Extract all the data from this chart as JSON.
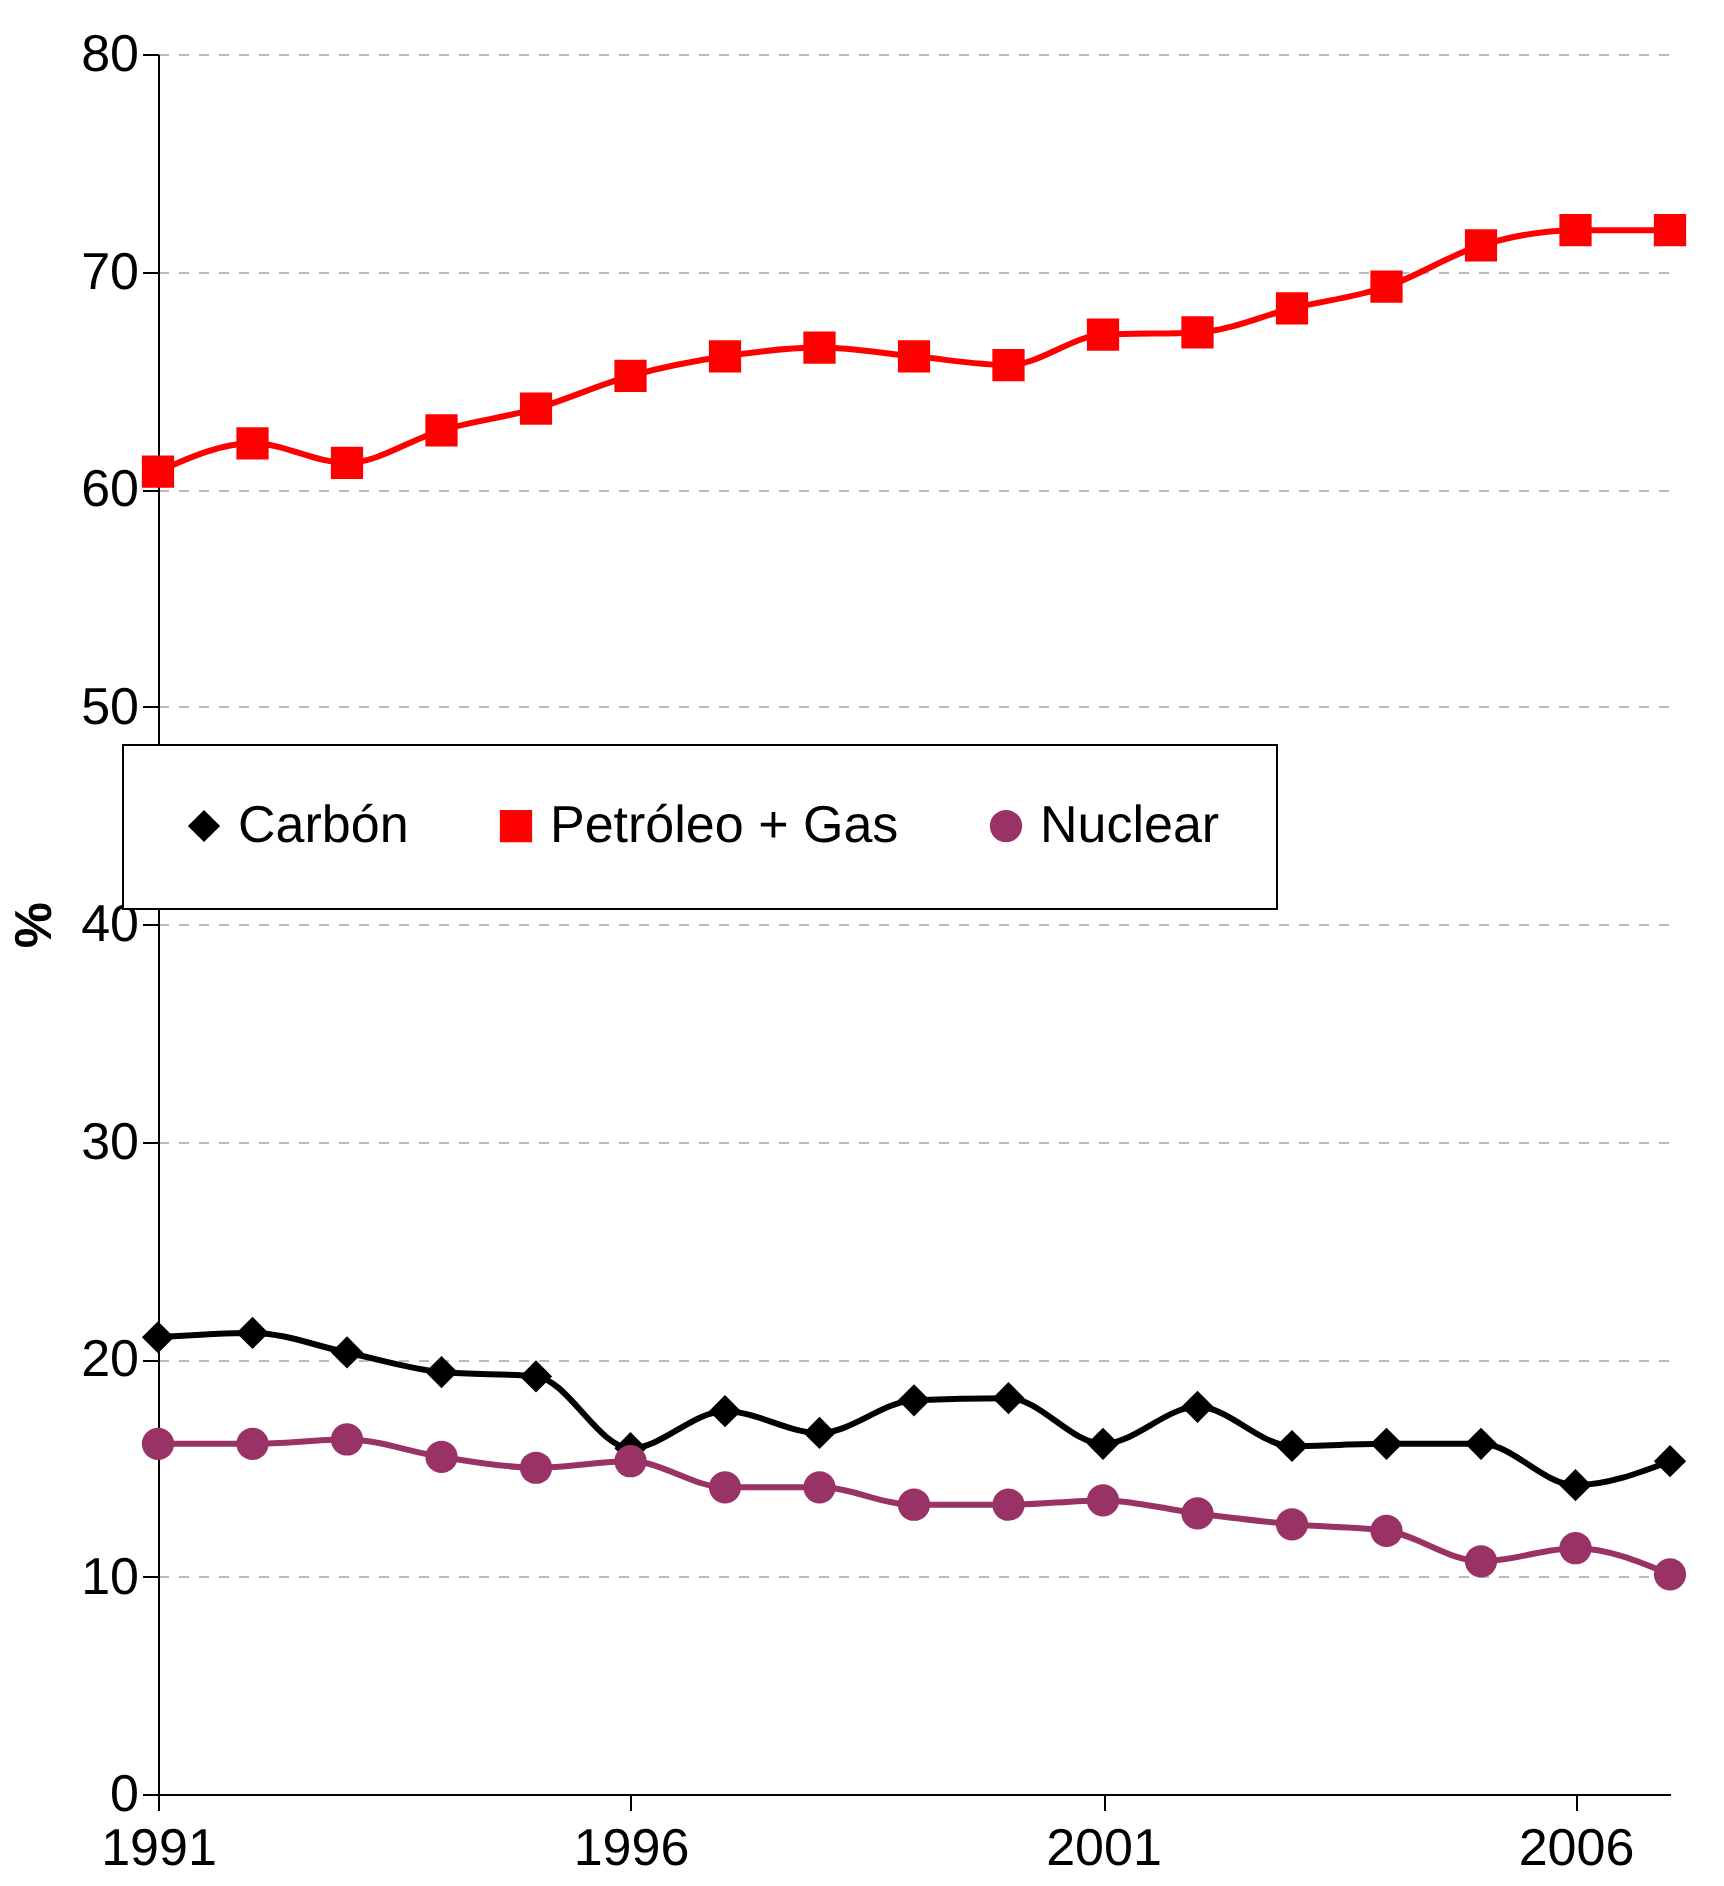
{
  "chart_data": {
    "type": "line",
    "ylabel": "%",
    "x": [
      1991,
      1992,
      1993,
      1994,
      1995,
      1996,
      1997,
      1998,
      1999,
      2000,
      2001,
      2002,
      2003,
      2004,
      2005,
      2006,
      2007
    ],
    "series": [
      {
        "name": "Carbón",
        "color": "#000000",
        "marker": "diamond",
        "values": [
          21.0,
          21.2,
          20.3,
          19.4,
          19.2,
          15.9,
          17.6,
          16.6,
          18.1,
          18.2,
          16.1,
          17.8,
          16.0,
          16.1,
          16.1,
          14.2,
          15.3
        ]
      },
      {
        "name": "Petróleo + Gas",
        "color": "#ff0000",
        "marker": "square",
        "values": [
          60.8,
          62.1,
          61.2,
          62.7,
          63.7,
          65.2,
          66.1,
          66.5,
          66.1,
          65.7,
          67.1,
          67.2,
          68.3,
          69.3,
          71.2,
          71.9,
          71.9
        ]
      },
      {
        "name": "Nuclear",
        "color": "#993366",
        "marker": "circle",
        "values": [
          16.1,
          16.1,
          16.3,
          15.5,
          15.0,
          15.3,
          14.1,
          14.1,
          13.3,
          13.3,
          13.5,
          12.9,
          12.4,
          12.1,
          10.7,
          11.3,
          10.1
        ]
      }
    ],
    "xlim": [
      1991,
      2007
    ],
    "xticks": [
      1991,
      1996,
      2001,
      2006
    ],
    "ylim": [
      0,
      80
    ],
    "yticks": [
      0,
      10,
      20,
      30,
      40,
      50,
      60,
      70,
      80
    ],
    "grid": "y",
    "legend": "center"
  }
}
